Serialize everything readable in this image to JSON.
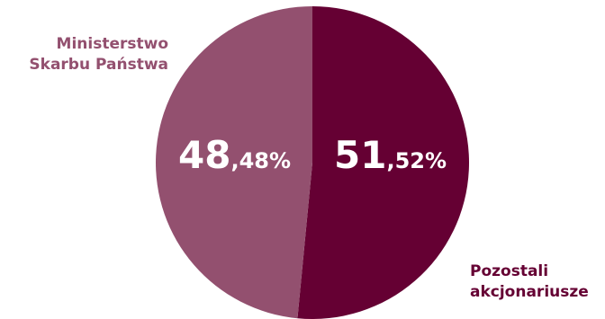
{
  "chart_data": {
    "type": "pie",
    "title": "",
    "start_angle_deg": 0,
    "direction": "clockwise",
    "slices": [
      {
        "name": "Pozostali akcjonariusze",
        "label_lines": [
          "Pozostali",
          "akcjonariusze"
        ],
        "value": 51.52,
        "value_int": "51",
        "value_frac": ",52%",
        "color": "#650033"
      },
      {
        "name": "Ministerstwo Skarbu Państwa",
        "label_lines": [
          "Ministerstwo",
          "Skarbu Państwa"
        ],
        "value": 48.48,
        "value_int": "48",
        "value_frac": ",48%",
        "color": "#93506f"
      }
    ]
  },
  "legend": {
    "left_text": "Ministerstwo\nSkarbu Państwa",
    "right_text": "Pozostali\nakcjonariusze",
    "left_color": "#93506f",
    "right_color": "#650033"
  }
}
